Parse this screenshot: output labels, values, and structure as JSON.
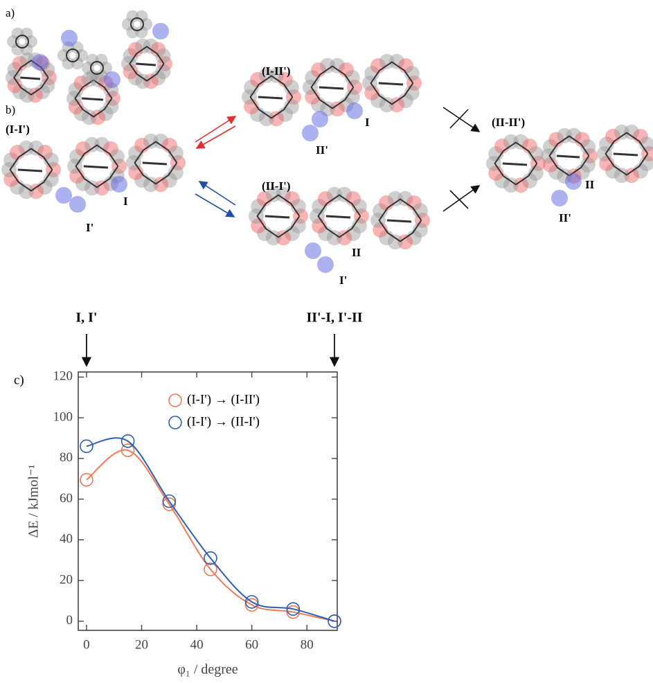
{
  "structures": {
    "panel_labels": [
      "a)",
      "b)"
    ],
    "complexes": [
      "(I-I')",
      "(I-II')",
      "(II-I')",
      "(II-II')"
    ],
    "site_labels": [
      "I",
      "I'",
      "I",
      "II'",
      "II",
      "I'",
      "II",
      "II'"
    ]
  },
  "chart_data": {
    "type": "scatter",
    "panel_label": "c)",
    "x_label": "φ₁ / degree",
    "y_label": "ΔE / kJmol⁻¹",
    "annotations": [
      {
        "text": "I, I'",
        "x": 0
      },
      {
        "text": "II'-I, I'-II",
        "x": 90
      }
    ],
    "x": [
      0,
      15,
      30,
      45,
      60,
      75,
      90
    ],
    "series": [
      {
        "name": "(I-I') → (I-II')",
        "color": "#ee7a55",
        "values": [
          69.5,
          84,
          57.5,
          25.5,
          8,
          4.5,
          0
        ]
      },
      {
        "name": "(I-I') → (II-I')",
        "color": "#2c5fb3",
        "values": [
          86,
          88.5,
          59,
          31,
          9.5,
          6,
          0
        ]
      }
    ],
    "xlim": [
      -3,
      91
    ],
    "ylim": [
      -4.5,
      122.5
    ],
    "xticks": [
      0,
      20,
      40,
      60,
      80
    ],
    "yticks": [
      0,
      20,
      40,
      60,
      80,
      100,
      120
    ]
  }
}
